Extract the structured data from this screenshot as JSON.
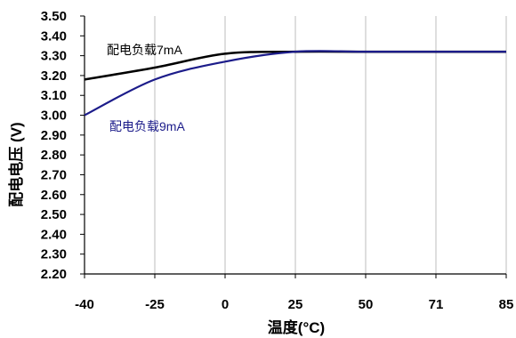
{
  "chart_data": {
    "type": "line",
    "categories": [
      "-40",
      "-25",
      "0",
      "25",
      "50",
      "71",
      "85"
    ],
    "y_ticks": [
      "3.50",
      "3.40",
      "3.30",
      "3.20",
      "3.10",
      "3.00",
      "2.90",
      "2.80",
      "2.70",
      "2.60",
      "2.50",
      "2.40",
      "2.30",
      "2.20"
    ],
    "ylim": [
      2.2,
      3.5
    ],
    "xlabel": "温度(°C)",
    "ylabel": "配电电压 (V)",
    "grid": "vertical",
    "series": [
      {
        "name": "配电负载7mA",
        "color": "#000000",
        "values": [
          3.18,
          3.24,
          3.31,
          3.32,
          3.32,
          3.32,
          3.32
        ]
      },
      {
        "name": "配电负载9mA",
        "color": "#1c1c8a",
        "values": [
          3.0,
          3.18,
          3.27,
          3.32,
          3.32,
          3.32,
          3.32
        ]
      }
    ]
  }
}
